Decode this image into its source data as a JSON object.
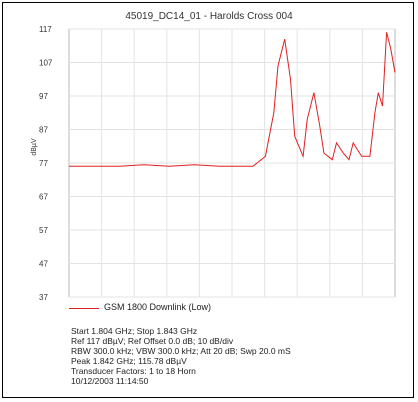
{
  "chart_data": {
    "type": "line",
    "title": "45019_DC14_01 - Harolds Cross 004",
    "ylabel": "dBµV",
    "ylim": [
      37,
      117
    ],
    "yticks": [
      117,
      107,
      97,
      87,
      77,
      67,
      57,
      47,
      37
    ],
    "xlim": [
      1.804,
      1.843
    ],
    "grid": true,
    "legend_placement": "bottom",
    "series": [
      {
        "name": "GSM 1800 Downlink (Low)",
        "color": "#e02020",
        "x": [
          1.804,
          1.807,
          1.81,
          1.813,
          1.816,
          1.819,
          1.822,
          1.8245,
          1.826,
          1.8265,
          1.8275,
          1.8285,
          1.829,
          1.8298,
          1.8305,
          1.831,
          1.832,
          1.8325,
          1.8333,
          1.834,
          1.8345,
          1.8355,
          1.836,
          1.8368,
          1.8375,
          1.838,
          1.839,
          1.84,
          1.8406,
          1.841,
          1.8415,
          1.842,
          1.8425,
          1.843
        ],
        "values": [
          76,
          76,
          76,
          76.5,
          76,
          76.5,
          76,
          76,
          76,
          77,
          79,
          92,
          106,
          114,
          102,
          85,
          79,
          90,
          98,
          88,
          80,
          78,
          83,
          80,
          78,
          83,
          79,
          79,
          92,
          98,
          94,
          116,
          111,
          104
        ]
      }
    ]
  },
  "info": {
    "line1": "Start 1.804 GHz; Stop 1.843 GHz",
    "line2": "Ref 117 dBµV; Ref Offset 0.0 dB; 10 dB/div",
    "line3": "RBW 300.0 kHz; VBW 300.0 kHz; Att 20 dB; Swp 20.0 mS",
    "line4": "Peak 1.842 GHz; 115.78 dBµV",
    "line5": "Transducer Factors: 1 to 18 Horn",
    "line6": "10/12/2003 11:14:50"
  }
}
